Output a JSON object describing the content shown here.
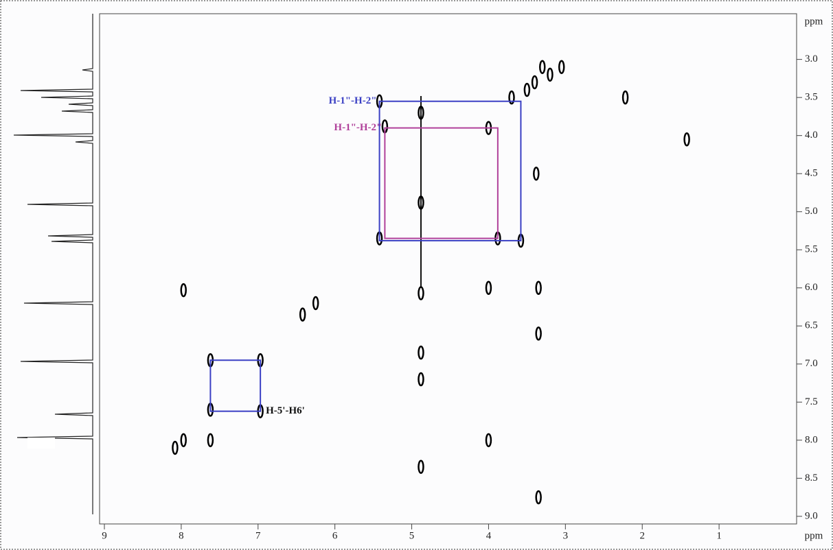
{
  "chart_data": {
    "type": "scatter",
    "xlabel": "ppm",
    "ylabel": "ppm",
    "xlim": [
      9,
      0
    ],
    "ylim": [
      2.4,
      9.1
    ],
    "xticks": [
      9,
      8,
      7,
      6,
      5,
      4,
      3,
      2,
      1
    ],
    "yticks": [
      {
        "value": 3,
        "label": "3.0"
      },
      {
        "value": 3.5,
        "label": "3.5"
      },
      {
        "value": 4,
        "label": "4.0"
      },
      {
        "value": 4.5,
        "label": "4.5"
      },
      {
        "value": 5,
        "label": "5.0"
      },
      {
        "value": 5.5,
        "label": "5.5"
      },
      {
        "value": 6,
        "label": "6.0"
      },
      {
        "value": 6.5,
        "label": "6.5"
      },
      {
        "value": 7,
        "label": "7.0"
      },
      {
        "value": 7.5,
        "label": "7.5"
      },
      {
        "value": 8,
        "label": "8.0"
      },
      {
        "value": 8.5,
        "label": "8.5"
      },
      {
        "value": 9,
        "label": "9.0"
      }
    ],
    "color": "#000000",
    "x": [
      5.42,
      5.35,
      4.88,
      5.42,
      3.58,
      3.88,
      4.88,
      3.7,
      3.5,
      3.4,
      3.2,
      3.3,
      3.05,
      4.0,
      2.22,
      1.42,
      3.38,
      4.88,
      4.0,
      3.35,
      3.35,
      7.97,
      6.42,
      6.25,
      7.62,
      6.97,
      7.62,
      6.97,
      7.62,
      7.97,
      8.08,
      4.88,
      4.88,
      4.88,
      4.0,
      3.35
    ],
    "values": [
      3.55,
      3.88,
      4.88,
      5.35,
      5.38,
      5.35,
      3.7,
      3.5,
      3.4,
      3.3,
      3.2,
      3.1,
      3.1,
      3.9,
      3.5,
      4.05,
      4.5,
      6.07,
      6.0,
      6.0,
      6.6,
      6.03,
      6.35,
      6.2,
      6.95,
      6.95,
      7.6,
      7.62,
      8.0,
      8.0,
      8.1,
      6.85,
      7.2,
      8.35,
      8.0,
      8.75
    ],
    "boxes": [
      {
        "label": "H-1\"-H-2\"",
        "color": "#3a3fc4",
        "x": [
          5.42,
          3.58
        ],
        "y": [
          3.55,
          5.38
        ]
      },
      {
        "label": "H-1\"-H-2\"",
        "color": "#b0409a",
        "x": [
          5.35,
          3.88
        ],
        "y": [
          3.9,
          5.35
        ]
      },
      {
        "label": "H-5'-H6'",
        "color": "#3a3fc4",
        "x": [
          7.62,
          6.97
        ],
        "y": [
          6.95,
          7.62
        ]
      }
    ]
  }
}
